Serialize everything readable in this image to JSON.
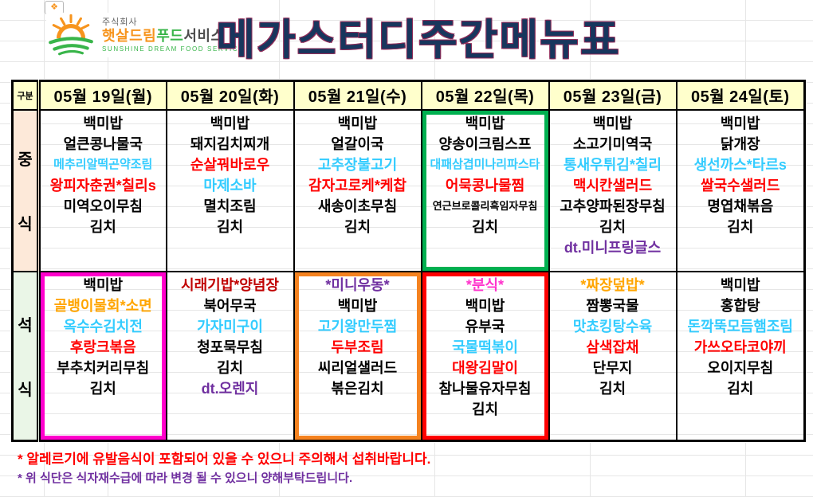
{
  "title": "메가스터디주간메뉴표",
  "corner_icon_glyph": "❖",
  "logo": {
    "company": "주식회사",
    "brand_orange": "햇살드림",
    "brand_green": "푸드",
    "brand_dark": "서비스",
    "subtitle": "SUNSHINE DREAM FOOD SERVICE"
  },
  "colors": {
    "grid_line": "#e6e6e6",
    "header_bg": "#ffffcc",
    "lunch_label_bg": "#fde9d9",
    "dinner_label_bg": "#eaf6e7",
    "title_color": "#17365d",
    "item_black": "#000000",
    "item_blue": "#33ccff",
    "item_red": "#ff0000",
    "item_darkred": "#c00000",
    "item_orange": "#ffa500",
    "item_purple": "#7030a0",
    "item_pink": "#ff33cc",
    "hl_green": "#00b050",
    "hl_magenta": "#ff00cc",
    "hl_orange": "#f5821f",
    "hl_red": "#ff0000",
    "note1": "#ff0000",
    "note2": "#7030a0",
    "logo_orange": "#f7941d",
    "logo_green": "#39b54a",
    "logo_dark": "#4d4d4d"
  },
  "table": {
    "corner_label": "구분",
    "day_headers": [
      "05월 19일(월)",
      "05월 20일(화)",
      "05월 21일(수)",
      "05월 22일(목)",
      "05월 23일(금)",
      "05월 24일(토)"
    ],
    "rows": [
      {
        "key": "lunch",
        "label": "중식",
        "cells": [
          {
            "items": [
              {
                "text": "백미밥",
                "color": "black"
              },
              {
                "text": "얼큰콩나물국",
                "color": "black"
              },
              {
                "text": "메추리알떡곤약조림",
                "color": "blue",
                "size": "sm"
              },
              {
                "text": "왕피자춘권*칠리s",
                "color": "red"
              },
              {
                "text": "미역오이무침",
                "color": "black"
              },
              {
                "text": "김치",
                "color": "black"
              }
            ]
          },
          {
            "items": [
              {
                "text": "백미밥",
                "color": "black"
              },
              {
                "text": "돼지김치찌개",
                "color": "black"
              },
              {
                "text": "순살꿔바로우",
                "color": "red"
              },
              {
                "text": "마제소바",
                "color": "blue"
              },
              {
                "text": "멸치조림",
                "color": "black"
              },
              {
                "text": "김치",
                "color": "black"
              }
            ]
          },
          {
            "items": [
              {
                "text": "백미밥",
                "color": "black"
              },
              {
                "text": "얼갈이국",
                "color": "black"
              },
              {
                "text": "고추장불고기",
                "color": "blue"
              },
              {
                "text": "감자고로케*케찹",
                "color": "red"
              },
              {
                "text": "새송이초무침",
                "color": "black"
              },
              {
                "text": "김치",
                "color": "black"
              }
            ]
          },
          {
            "highlight": "green",
            "items": [
              {
                "text": "백미밥",
                "color": "black"
              },
              {
                "text": "양송이크림스프",
                "color": "black"
              },
              {
                "text": "대패삼겹미나리파스타",
                "color": "blue",
                "size": "sm"
              },
              {
                "text": "어묵콩나물찜",
                "color": "red"
              },
              {
                "text": "연근브로콜리흑임자무침",
                "color": "black",
                "size": "xs"
              },
              {
                "text": "김치",
                "color": "black"
              }
            ]
          },
          {
            "items": [
              {
                "text": "백미밥",
                "color": "black"
              },
              {
                "text": "소고기미역국",
                "color": "black"
              },
              {
                "text": "통새우튀김*칠리",
                "color": "blue"
              },
              {
                "text": "맥시칸샐러드",
                "color": "red"
              },
              {
                "text": "고추양파된장무침",
                "color": "black"
              },
              {
                "text": "김치",
                "color": "black"
              },
              {
                "text": "dt.미니프링글스",
                "color": "purple"
              }
            ]
          },
          {
            "items": [
              {
                "text": "백미밥",
                "color": "black"
              },
              {
                "text": "닭개장",
                "color": "black"
              },
              {
                "text": "생선까스*타르s",
                "color": "blue"
              },
              {
                "text": "쌀국수샐러드",
                "color": "red"
              },
              {
                "text": "명엽채볶음",
                "color": "black"
              },
              {
                "text": "김치",
                "color": "black"
              }
            ]
          }
        ]
      },
      {
        "key": "dinner",
        "label": "석식",
        "cells": [
          {
            "highlight": "magenta",
            "items": [
              {
                "text": "백미밥",
                "color": "black"
              },
              {
                "text": "골뱅이물회*소면",
                "color": "orange"
              },
              {
                "text": "옥수수김치전",
                "color": "blue"
              },
              {
                "text": "후랑크볶음",
                "color": "red"
              },
              {
                "text": "부추치커리무침",
                "color": "black"
              },
              {
                "text": "김치",
                "color": "black"
              }
            ]
          },
          {
            "items": [
              {
                "text": "시래기밥*양념장",
                "color": "darkred"
              },
              {
                "text": "북어무국",
                "color": "black"
              },
              {
                "text": "가자미구이",
                "color": "blue"
              },
              {
                "text": "청포묵무침",
                "color": "black"
              },
              {
                "text": "김치",
                "color": "black"
              },
              {
                "text": "dt.오렌지",
                "color": "purple"
              }
            ]
          },
          {
            "highlight": "orange",
            "items": [
              {
                "text": "*미니우동*",
                "color": "purple"
              },
              {
                "text": "백미밥",
                "color": "black"
              },
              {
                "text": "고기왕만두찜",
                "color": "blue"
              },
              {
                "text": "두부조림",
                "color": "red"
              },
              {
                "text": "씨리얼샐러드",
                "color": "black"
              },
              {
                "text": "볶은김치",
                "color": "black"
              }
            ]
          },
          {
            "highlight": "red",
            "items": [
              {
                "text": "*분식*",
                "color": "pink"
              },
              {
                "text": "백미밥",
                "color": "black"
              },
              {
                "text": "유부국",
                "color": "black"
              },
              {
                "text": "국물떡볶이",
                "color": "blue"
              },
              {
                "text": "대왕김말이",
                "color": "red"
              },
              {
                "text": "참나물유자무침",
                "color": "black"
              },
              {
                "text": "김치",
                "color": "black"
              }
            ]
          },
          {
            "items": [
              {
                "text": "*짜장덮밥*",
                "color": "orange"
              },
              {
                "text": "짬뽕국물",
                "color": "black"
              },
              {
                "text": "맛쵸킹탕수육",
                "color": "blue"
              },
              {
                "text": "삼색잡채",
                "color": "red"
              },
              {
                "text": "단무지",
                "color": "black"
              },
              {
                "text": "김치",
                "color": "black"
              }
            ]
          },
          {
            "items": [
              {
                "text": "백미밥",
                "color": "black"
              },
              {
                "text": "홍합탕",
                "color": "black"
              },
              {
                "text": "돈깍뚝모듬햄조림",
                "color": "blue"
              },
              {
                "text": "가쓰오타코야끼",
                "color": "red"
              },
              {
                "text": "오이지무침",
                "color": "black"
              },
              {
                "text": "김치",
                "color": "black"
              }
            ]
          }
        ]
      }
    ]
  },
  "notes": [
    {
      "text": "* 알레르기에 유발음식이 포함되어 있을 수 있으니 주의해서 섭취바랍니다.",
      "color": "red"
    },
    {
      "text": "* 위 식단은 식자재수급에 따라 변경 될 수 있으니 양해부탁드립니다.",
      "color": "purple"
    }
  ]
}
